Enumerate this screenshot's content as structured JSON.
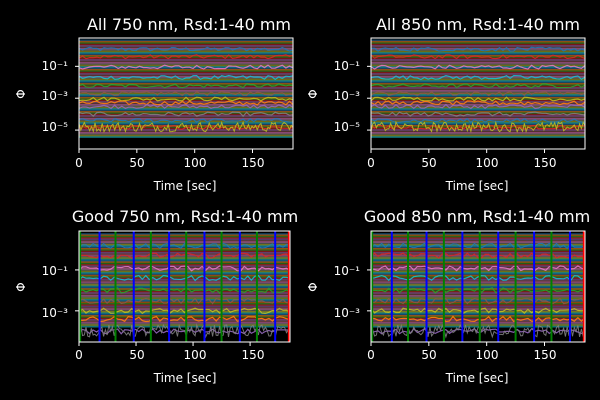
{
  "figure": {
    "background": "#000000",
    "foreground": "#ffffff"
  },
  "chart_data": [
    {
      "type": "line",
      "title": "All 750 nm, Rsd:1-40 mm",
      "xlabel": "Time [sec]",
      "ylabel": "Φ",
      "xlim": [
        0,
        185
      ],
      "ylim": [
        6.5e-07,
        6.0
      ],
      "yscale": "log",
      "xticks": [
        0,
        50,
        100,
        150
      ],
      "xtick_labels": [
        "0",
        "50",
        "100",
        "150"
      ],
      "yticks": [
        1e-05,
        0.001,
        0.1
      ],
      "ytick_labels": [
        "10⁻⁵",
        "10⁻³",
        "10⁻¹"
      ],
      "grid": false,
      "legend": "none",
      "series": [
        {
          "values": [
            1.2
          ]
        },
        {
          "values": [
            0.4
          ]
        },
        {
          "values": [
            0.09
          ]
        },
        {
          "values": [
            0.02
          ]
        },
        {
          "values": [
            0.006
          ]
        },
        {
          "values": [
            0.002
          ]
        },
        {
          "values": [
            0.0009
          ]
        },
        {
          "values": [
            0.0005
          ]
        },
        {
          "values": [
            0.0003
          ]
        },
        {
          "values": [
            0.0001
          ]
        },
        {
          "values": [
            4e-05
          ]
        },
        {
          "values": [
            1.5e-05
          ]
        }
      ],
      "markers": []
    },
    {
      "type": "line",
      "title": "All 850 nm, Rsd:1-40 mm",
      "xlabel": "Time [sec]",
      "ylabel": "Φ",
      "xlim": [
        0,
        185
      ],
      "ylim": [
        6.5e-07,
        6.0
      ],
      "yscale": "log",
      "xticks": [
        0,
        50,
        100,
        150
      ],
      "xtick_labels": [
        "0",
        "50",
        "100",
        "150"
      ],
      "yticks": [
        1e-05,
        0.001,
        0.1
      ],
      "ytick_labels": [
        "10⁻⁵",
        "10⁻³",
        "10⁻¹"
      ],
      "grid": false,
      "legend": "none",
      "series": [
        {
          "values": [
            1.2
          ]
        },
        {
          "values": [
            0.4
          ]
        },
        {
          "values": [
            0.09
          ]
        },
        {
          "values": [
            0.02
          ]
        },
        {
          "values": [
            0.006
          ]
        },
        {
          "values": [
            0.002
          ]
        },
        {
          "values": [
            0.0009
          ]
        },
        {
          "values": [
            0.0005
          ]
        },
        {
          "values": [
            0.0003
          ]
        },
        {
          "values": [
            0.0001
          ]
        },
        {
          "values": [
            4e-05
          ]
        },
        {
          "values": [
            1.5e-05
          ]
        }
      ],
      "markers": []
    },
    {
      "type": "line",
      "title": "Good 750 nm, Rsd:1-40 mm",
      "xlabel": "Time [sec]",
      "ylabel": "Φ",
      "xlim": [
        0,
        185
      ],
      "ylim": [
        3e-05,
        8.0
      ],
      "yscale": "log",
      "xticks": [
        0,
        50,
        100,
        150
      ],
      "xtick_labels": [
        "0",
        "50",
        "100",
        "150"
      ],
      "yticks": [
        0.001,
        0.1
      ],
      "ytick_labels": [
        "10⁻³",
        "10⁻¹"
      ],
      "grid": false,
      "legend": "none",
      "series": [
        {
          "values": [
            1.5
          ]
        },
        {
          "values": [
            0.5
          ]
        },
        {
          "values": [
            0.12
          ]
        },
        {
          "values": [
            0.04
          ]
        },
        {
          "values": [
            0.01
          ]
        },
        {
          "values": [
            0.003
          ]
        },
        {
          "values": [
            0.001
          ]
        },
        {
          "values": [
            0.0004
          ]
        },
        {
          "values": [
            0.0001
          ]
        }
      ],
      "markers": [
        {
          "x": 1,
          "color": "#008000"
        },
        {
          "x": 18,
          "color": "#0000ff"
        },
        {
          "x": 32,
          "color": "#008000"
        },
        {
          "x": 48,
          "color": "#0000ff"
        },
        {
          "x": 63,
          "color": "#008000"
        },
        {
          "x": 79,
          "color": "#0000ff"
        },
        {
          "x": 94,
          "color": "#008000"
        },
        {
          "x": 110,
          "color": "#0000ff"
        },
        {
          "x": 125,
          "color": "#008000"
        },
        {
          "x": 141,
          "color": "#0000ff"
        },
        {
          "x": 156,
          "color": "#008000"
        },
        {
          "x": 172,
          "color": "#0000ff"
        },
        {
          "x": 184,
          "color": "#ff0000"
        }
      ]
    },
    {
      "type": "line",
      "title": "Good 850 nm, Rsd:1-40 mm",
      "xlabel": "Time [sec]",
      "ylabel": "Φ",
      "xlim": [
        0,
        185
      ],
      "ylim": [
        3e-05,
        8.0
      ],
      "yscale": "log",
      "xticks": [
        0,
        50,
        100,
        150
      ],
      "xtick_labels": [
        "0",
        "50",
        "100",
        "150"
      ],
      "yticks": [
        0.001,
        0.1
      ],
      "ytick_labels": [
        "10⁻³",
        "10⁻¹"
      ],
      "grid": false,
      "legend": "none",
      "series": [
        {
          "values": [
            1.5
          ]
        },
        {
          "values": [
            0.5
          ]
        },
        {
          "values": [
            0.12
          ]
        },
        {
          "values": [
            0.04
          ]
        },
        {
          "values": [
            0.01
          ]
        },
        {
          "values": [
            0.003
          ]
        },
        {
          "values": [
            0.001
          ]
        },
        {
          "values": [
            0.0004
          ]
        },
        {
          "values": [
            0.0001
          ]
        }
      ],
      "markers": [
        {
          "x": 1,
          "color": "#008000"
        },
        {
          "x": 18,
          "color": "#0000ff"
        },
        {
          "x": 32,
          "color": "#008000"
        },
        {
          "x": 48,
          "color": "#0000ff"
        },
        {
          "x": 63,
          "color": "#008000"
        },
        {
          "x": 79,
          "color": "#0000ff"
        },
        {
          "x": 94,
          "color": "#008000"
        },
        {
          "x": 110,
          "color": "#0000ff"
        },
        {
          "x": 125,
          "color": "#008000"
        },
        {
          "x": 141,
          "color": "#0000ff"
        },
        {
          "x": 156,
          "color": "#008000"
        },
        {
          "x": 172,
          "color": "#0000ff"
        },
        {
          "x": 184,
          "color": "#ff0000"
        }
      ]
    }
  ]
}
